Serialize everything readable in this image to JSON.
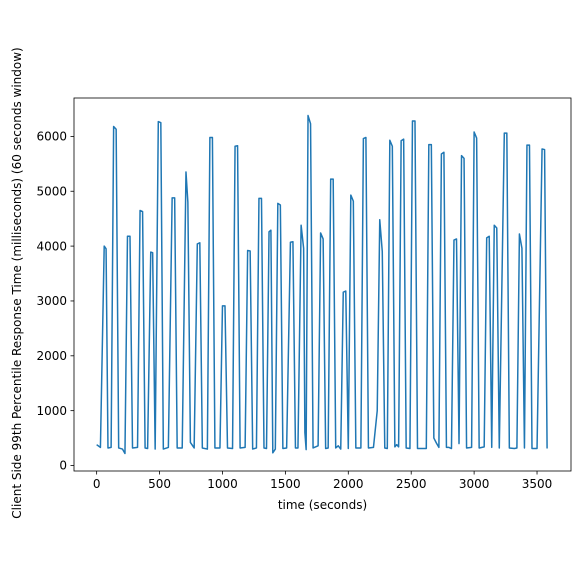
{
  "chart_data": {
    "type": "line",
    "title": "",
    "xlabel": "time (seconds)",
    "ylabel": "Client Side 99th Percentile Response Time (milliseconds) (60 seconds window)",
    "xlim": [
      -180,
      3770
    ],
    "ylim": [
      -100,
      6700
    ],
    "xticks": [
      0,
      500,
      1000,
      1500,
      2000,
      2500,
      3000,
      3500
    ],
    "yticks": [
      0,
      1000,
      2000,
      3000,
      4000,
      5000,
      6000
    ],
    "grid": false,
    "legend": "none",
    "line_color": "#1f77b4",
    "series": [
      {
        "points": [
          [
            0,
            380
          ],
          [
            30,
            330
          ],
          [
            60,
            4000
          ],
          [
            75,
            3950
          ],
          [
            90,
            320
          ],
          [
            115,
            330
          ],
          [
            135,
            6180
          ],
          [
            155,
            6130
          ],
          [
            175,
            320
          ],
          [
            205,
            300
          ],
          [
            225,
            220
          ],
          [
            245,
            4180
          ],
          [
            265,
            4180
          ],
          [
            285,
            320
          ],
          [
            325,
            330
          ],
          [
            345,
            4650
          ],
          [
            365,
            4630
          ],
          [
            385,
            320
          ],
          [
            405,
            310
          ],
          [
            430,
            3890
          ],
          [
            445,
            3880
          ],
          [
            465,
            300
          ],
          [
            490,
            6270
          ],
          [
            510,
            6250
          ],
          [
            530,
            300
          ],
          [
            570,
            330
          ],
          [
            600,
            4880
          ],
          [
            620,
            4880
          ],
          [
            640,
            320
          ],
          [
            680,
            320
          ],
          [
            710,
            5350
          ],
          [
            725,
            4800
          ],
          [
            745,
            420
          ],
          [
            775,
            320
          ],
          [
            800,
            4040
          ],
          [
            820,
            4060
          ],
          [
            840,
            320
          ],
          [
            880,
            300
          ],
          [
            900,
            5980
          ],
          [
            920,
            5980
          ],
          [
            940,
            320
          ],
          [
            980,
            320
          ],
          [
            1000,
            2910
          ],
          [
            1020,
            2910
          ],
          [
            1040,
            320
          ],
          [
            1080,
            310
          ],
          [
            1100,
            5820
          ],
          [
            1120,
            5830
          ],
          [
            1140,
            320
          ],
          [
            1180,
            330
          ],
          [
            1200,
            3920
          ],
          [
            1220,
            3910
          ],
          [
            1240,
            300
          ],
          [
            1270,
            320
          ],
          [
            1290,
            4870
          ],
          [
            1310,
            4870
          ],
          [
            1330,
            320
          ],
          [
            1350,
            310
          ],
          [
            1370,
            4260
          ],
          [
            1385,
            4290
          ],
          [
            1400,
            230
          ],
          [
            1420,
            300
          ],
          [
            1440,
            4780
          ],
          [
            1460,
            4750
          ],
          [
            1480,
            310
          ],
          [
            1510,
            320
          ],
          [
            1540,
            4070
          ],
          [
            1560,
            4080
          ],
          [
            1580,
            320
          ],
          [
            1600,
            320
          ],
          [
            1625,
            4380
          ],
          [
            1645,
            3960
          ],
          [
            1655,
            600
          ],
          [
            1665,
            290
          ],
          [
            1680,
            6380
          ],
          [
            1700,
            6230
          ],
          [
            1720,
            320
          ],
          [
            1760,
            360
          ],
          [
            1780,
            4240
          ],
          [
            1800,
            4130
          ],
          [
            1820,
            310
          ],
          [
            1840,
            320
          ],
          [
            1860,
            5220
          ],
          [
            1880,
            5220
          ],
          [
            1900,
            320
          ],
          [
            1920,
            360
          ],
          [
            1940,
            300
          ],
          [
            1960,
            3160
          ],
          [
            1980,
            3180
          ],
          [
            2000,
            310
          ],
          [
            2020,
            4930
          ],
          [
            2040,
            4820
          ],
          [
            2060,
            320
          ],
          [
            2100,
            320
          ],
          [
            2120,
            5960
          ],
          [
            2140,
            5980
          ],
          [
            2160,
            320
          ],
          [
            2200,
            330
          ],
          [
            2230,
            1000
          ],
          [
            2250,
            4480
          ],
          [
            2270,
            3900
          ],
          [
            2290,
            320
          ],
          [
            2310,
            310
          ],
          [
            2330,
            5930
          ],
          [
            2350,
            5820
          ],
          [
            2370,
            340
          ],
          [
            2385,
            380
          ],
          [
            2400,
            340
          ],
          [
            2420,
            5920
          ],
          [
            2440,
            5950
          ],
          [
            2460,
            320
          ],
          [
            2490,
            310
          ],
          [
            2510,
            6280
          ],
          [
            2530,
            6280
          ],
          [
            2550,
            310
          ],
          [
            2590,
            310
          ],
          [
            2620,
            310
          ],
          [
            2640,
            5850
          ],
          [
            2660,
            5850
          ],
          [
            2680,
            500
          ],
          [
            2700,
            410
          ],
          [
            2720,
            330
          ],
          [
            2740,
            5680
          ],
          [
            2760,
            5710
          ],
          [
            2780,
            330
          ],
          [
            2800,
            330
          ],
          [
            2820,
            310
          ],
          [
            2840,
            4110
          ],
          [
            2860,
            4130
          ],
          [
            2880,
            400
          ],
          [
            2900,
            5650
          ],
          [
            2920,
            5600
          ],
          [
            2940,
            320
          ],
          [
            2980,
            330
          ],
          [
            3000,
            6080
          ],
          [
            3020,
            5970
          ],
          [
            3040,
            320
          ],
          [
            3080,
            340
          ],
          [
            3100,
            4150
          ],
          [
            3120,
            4180
          ],
          [
            3140,
            330
          ],
          [
            3160,
            4380
          ],
          [
            3180,
            4330
          ],
          [
            3200,
            320
          ],
          [
            3240,
            6060
          ],
          [
            3260,
            6060
          ],
          [
            3280,
            320
          ],
          [
            3320,
            310
          ],
          [
            3340,
            320
          ],
          [
            3360,
            4220
          ],
          [
            3380,
            3960
          ],
          [
            3400,
            320
          ],
          [
            3420,
            5840
          ],
          [
            3440,
            5840
          ],
          [
            3460,
            310
          ],
          [
            3500,
            310
          ],
          [
            3540,
            5770
          ],
          [
            3560,
            5760
          ],
          [
            3580,
            310
          ]
        ]
      }
    ]
  }
}
